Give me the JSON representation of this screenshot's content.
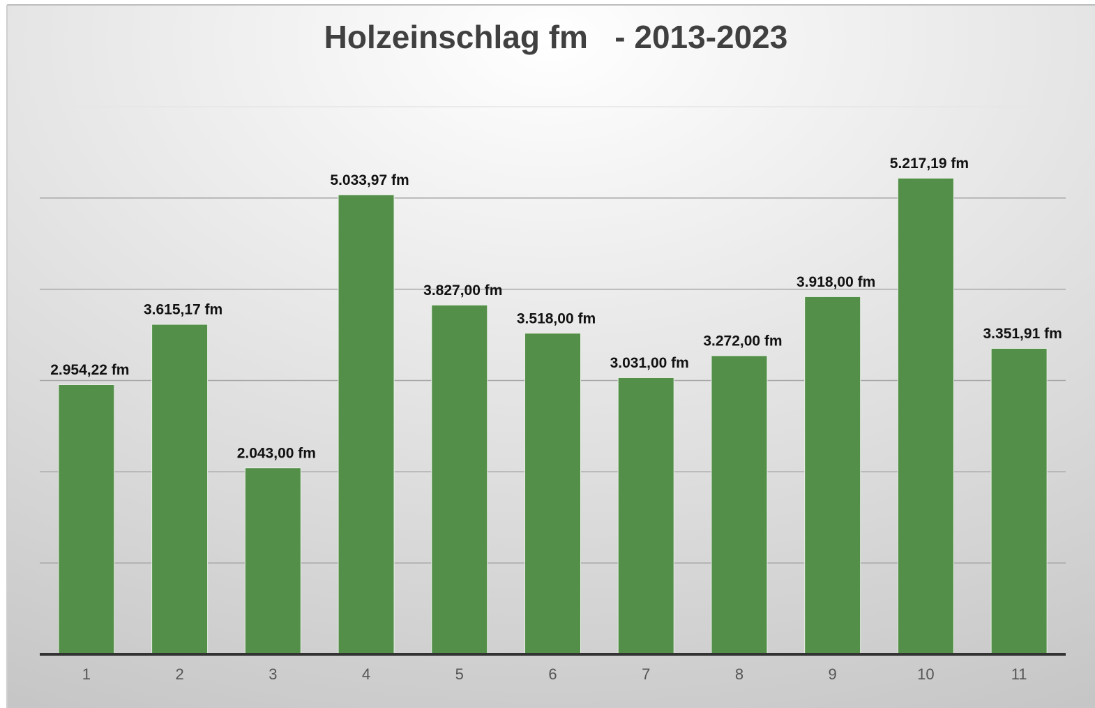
{
  "chart_data": {
    "type": "bar",
    "title": "Holzeinschlag fm   - 2013-2023",
    "categories": [
      "1",
      "2",
      "3",
      "4",
      "5",
      "6",
      "7",
      "8",
      "9",
      "10",
      "11"
    ],
    "values": [
      2954.22,
      3615.17,
      2043.0,
      5033.97,
      3827.0,
      3518.0,
      3031.0,
      3272.0,
      3918.0,
      5217.19,
      3351.91
    ],
    "value_labels": [
      "2.954,22 fm",
      "3.615,17 fm",
      "2.043,00 fm",
      "5.033,97 fm",
      "3.827,00 fm",
      "3.518,00 fm",
      "3.031,00 fm",
      "3.272,00 fm",
      "3.918,00 fm",
      "5.217,19 fm",
      "3.351,91 fm"
    ],
    "color": "#548f49",
    "ylim": [
      0,
      6000
    ],
    "yticks": [
      0,
      1000,
      2000,
      3000,
      4000,
      5000,
      6000
    ],
    "grid": true
  }
}
